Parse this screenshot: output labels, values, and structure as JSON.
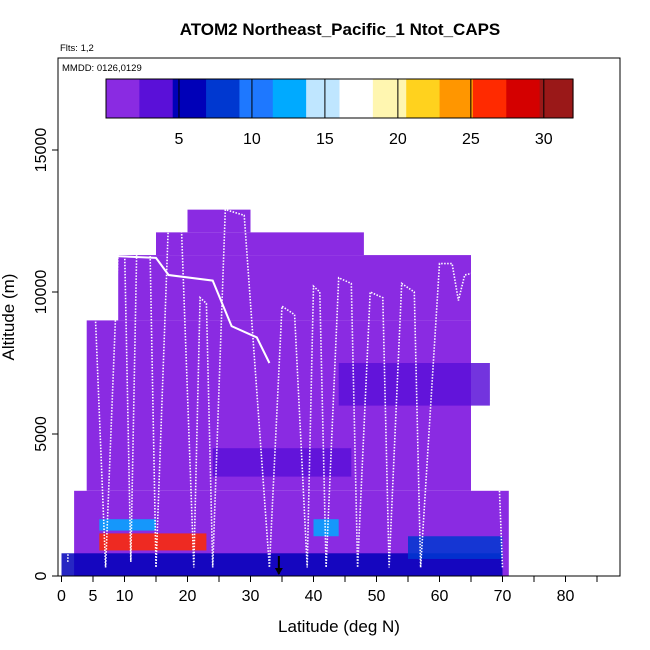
{
  "chart_data": {
    "type": "heatmap",
    "title": "ATOM2 Northeast_Pacific_1 Ntot_CAPS",
    "flights_label": "Flts: 1,2",
    "dates_label": "MMDD: 0126,0129",
    "xlabel": "Latitude (deg N)",
    "ylabel": "Altitude (m)",
    "xlim": [
      0,
      85
    ],
    "ylim": [
      0,
      17500
    ],
    "x_ticks": [
      0,
      5,
      10,
      20,
      30,
      40,
      50,
      60,
      70,
      80
    ],
    "y_ticks": [
      0,
      5000,
      10000,
      15000
    ],
    "colorbar": {
      "range": [
        0,
        32
      ],
      "ticks": [
        5,
        10,
        15,
        20,
        25,
        30
      ],
      "colors": [
        "#8a2be2",
        "#5a10d8",
        "#0000b8",
        "#0038d0",
        "#1e78ff",
        "#00aaff",
        "#bfe6ff",
        "#ffffff",
        "#fff6b0",
        "#ffd21e",
        "#ff9600",
        "#ff2a00",
        "#d40000",
        "#9a1818"
      ]
    },
    "grid": false,
    "legend": "colorbar-top",
    "background_color": "#8a2be2",
    "flight_track_color": "#ffffff",
    "southern_marker_latitude": 34.5,
    "regions": [
      {
        "lat": [
          2,
          71
        ],
        "alt": [
          0,
          3000
        ],
        "value": 1
      },
      {
        "lat": [
          4,
          65
        ],
        "alt": [
          3000,
          9000
        ],
        "value": 1
      },
      {
        "lat": [
          9,
          65
        ],
        "alt": [
          9000,
          11300
        ],
        "value": 1
      },
      {
        "lat": [
          15,
          48
        ],
        "alt": [
          11300,
          12100
        ],
        "value": 1
      },
      {
        "lat": [
          20,
          30
        ],
        "alt": [
          12100,
          12900
        ],
        "value": 1
      }
    ],
    "hotspots": [
      {
        "lat": [
          6,
          23
        ],
        "alt": [
          900,
          1500
        ],
        "value": 27
      },
      {
        "lat": [
          6,
          15
        ],
        "alt": [
          1600,
          2000
        ],
        "value": 12
      },
      {
        "lat": [
          40,
          44
        ],
        "alt": [
          1400,
          2000
        ],
        "value": 12
      },
      {
        "lat": [
          0,
          70
        ],
        "alt": [
          0,
          800
        ],
        "value": 6
      },
      {
        "lat": [
          44,
          68
        ],
        "alt": [
          6000,
          7500
        ],
        "value": 4
      },
      {
        "lat": [
          24,
          46
        ],
        "alt": [
          3500,
          4500
        ],
        "value": 4
      },
      {
        "lat": [
          55,
          70
        ],
        "alt": [
          600,
          1400
        ],
        "value": 9
      }
    ],
    "flight_track": [
      [
        1,
        500
      ],
      [
        2,
        11100
      ],
      [
        5,
        11200
      ],
      [
        7,
        300
      ],
      [
        9,
        11500
      ],
      [
        10,
        11700
      ],
      [
        11,
        500
      ],
      [
        12,
        12200
      ],
      [
        14,
        12100
      ],
      [
        15,
        300
      ],
      [
        17,
        12600
      ],
      [
        19,
        12500
      ],
      [
        21,
        300
      ],
      [
        22,
        9800
      ],
      [
        23,
        9600
      ],
      [
        24,
        300
      ],
      [
        26,
        12900
      ],
      [
        29,
        12700
      ],
      [
        33,
        300
      ],
      [
        35,
        9500
      ],
      [
        37,
        9200
      ],
      [
        39,
        300
      ],
      [
        40,
        10200
      ],
      [
        41,
        10000
      ],
      [
        42,
        300
      ],
      [
        44,
        10500
      ],
      [
        46,
        10300
      ],
      [
        47,
        300
      ],
      [
        49,
        10000
      ],
      [
        51,
        9800
      ],
      [
        52,
        300
      ],
      [
        54,
        10300
      ],
      [
        56,
        10000
      ],
      [
        57,
        300
      ],
      [
        60,
        11000
      ],
      [
        62,
        11000
      ],
      [
        63,
        9700
      ],
      [
        64,
        10600
      ],
      [
        66,
        10700
      ],
      [
        67,
        11400
      ],
      [
        68,
        11500
      ],
      [
        70,
        300
      ]
    ],
    "flight_track_upper": [
      [
        5,
        11300
      ],
      [
        15,
        11200
      ],
      [
        17,
        10600
      ],
      [
        24,
        10400
      ],
      [
        27,
        8800
      ],
      [
        31,
        8400
      ],
      [
        33,
        7500
      ]
    ]
  }
}
